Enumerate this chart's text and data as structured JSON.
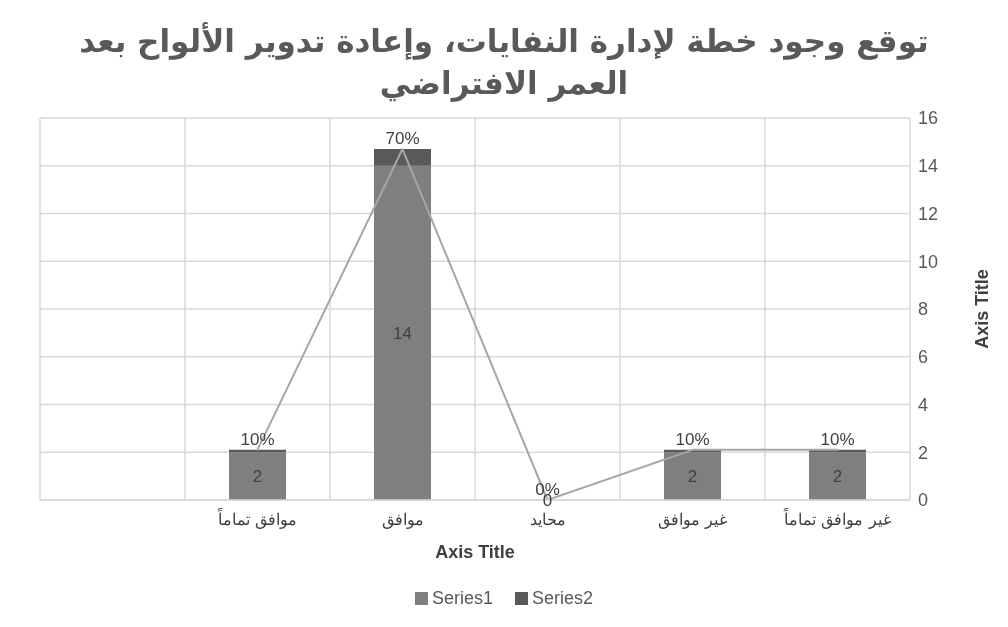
{
  "chart_data": {
    "type": "bar",
    "title": "توقع وجود خطة لإدارة النفايات، وإعادة تدوير الألواح بعد العمر الافتراضي",
    "xlabel": "Axis Title",
    "ylabel": "Axis Title",
    "categories": [
      null,
      "موافق تماماً",
      "موافق",
      "محايد",
      "غير موافق",
      "غير موافق تماماً"
    ],
    "stacked": true,
    "series": [
      {
        "name": "Series1",
        "color": "#7f7f7f",
        "values": [
          null,
          2,
          14,
          0,
          2,
          2
        ],
        "value_labels": [
          null,
          "2",
          "14",
          "0",
          "2",
          "2"
        ]
      },
      {
        "name": "Series2",
        "color": "#595959",
        "values": [
          null,
          0.1,
          0.7,
          0,
          0.1,
          0.1
        ],
        "value_labels": [
          null,
          "10%",
          "70%",
          "0%",
          "10%",
          "10%"
        ]
      },
      {
        "type": "line",
        "color": "#a6a6a6",
        "values": [
          null,
          2.1,
          14.7,
          0,
          2.1,
          2.1
        ]
      }
    ],
    "ylim": [
      0,
      16
    ],
    "yticks": [
      0,
      2,
      4,
      6,
      8,
      10,
      12,
      14,
      16
    ],
    "grid": true,
    "legend": "bottom",
    "marker": "none"
  }
}
